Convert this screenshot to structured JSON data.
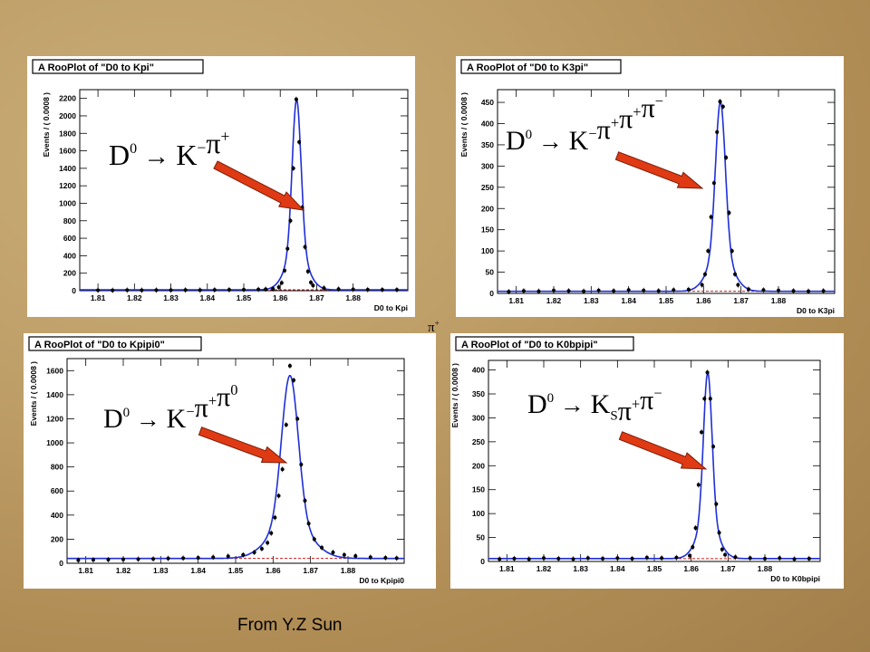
{
  "credit": "From Y.Z Sun",
  "stray_label": {
    "base": "π",
    "sup": "+"
  },
  "colors": {
    "fit": "#1f2fd8",
    "background": "#d01818",
    "points": "#000000",
    "arrow": "#e03a14",
    "arrow_edge": "#7a1e08"
  },
  "chart_data": [
    {
      "type": "scatter",
      "title": "A RooPlot of \"D0 to Kpi\"",
      "xlabel": "D0 to Kpi",
      "ylabel": "Events / ( 0.0008 )",
      "xlim": [
        1.805,
        1.895
      ],
      "ylim": [
        0,
        2300
      ],
      "xticks": [
        "1.81",
        "1.82",
        "1.83",
        "1.84",
        "1.85",
        "1.86",
        "1.87",
        "1.88"
      ],
      "yticks": [
        0,
        200,
        400,
        600,
        800,
        1000,
        1200,
        1400,
        1600,
        1800,
        2000,
        2200
      ],
      "peak": {
        "mean": 1.8645,
        "sigma": 0.0012,
        "height": 2190
      },
      "baseline": 10,
      "formula": {
        "base": "D",
        "sup0": "0",
        "arrow": "→",
        "parts": [
          [
            "K",
            "−",
            ""
          ],
          [
            "π",
            "+",
            ""
          ]
        ]
      },
      "points": [
        [
          1.81,
          5
        ],
        [
          1.814,
          4
        ],
        [
          1.818,
          6
        ],
        [
          1.822,
          5
        ],
        [
          1.826,
          7
        ],
        [
          1.83,
          6
        ],
        [
          1.834,
          8
        ],
        [
          1.838,
          7
        ],
        [
          1.842,
          9
        ],
        [
          1.846,
          10
        ],
        [
          1.85,
          12
        ],
        [
          1.854,
          14
        ],
        [
          1.856,
          17
        ],
        [
          1.858,
          22
        ],
        [
          1.8596,
          40
        ],
        [
          1.8604,
          90
        ],
        [
          1.8612,
          230
        ],
        [
          1.862,
          480
        ],
        [
          1.8628,
          800
        ],
        [
          1.8636,
          1400
        ],
        [
          1.8644,
          2190
        ],
        [
          1.8652,
          1700
        ],
        [
          1.866,
          950
        ],
        [
          1.8668,
          500
        ],
        [
          1.8676,
          220
        ],
        [
          1.8684,
          95
        ],
        [
          1.869,
          60
        ],
        [
          1.872,
          30
        ],
        [
          1.876,
          18
        ],
        [
          1.88,
          15
        ],
        [
          1.884,
          12
        ],
        [
          1.888,
          11
        ],
        [
          1.892,
          10
        ]
      ]
    },
    {
      "type": "scatter",
      "title": "A RooPlot of \"D0 to K3pi\"",
      "xlabel": "D0 to K3pi",
      "ylabel": "Events / ( 0.0008 )",
      "xlim": [
        1.805,
        1.895
      ],
      "ylim": [
        0,
        480
      ],
      "xticks": [
        "1.81",
        "1.82",
        "1.83",
        "1.84",
        "1.85",
        "1.86",
        "1.87",
        "1.88"
      ],
      "yticks": [
        0,
        50,
        100,
        150,
        200,
        250,
        300,
        350,
        400,
        450
      ],
      "peak": {
        "mean": 1.8645,
        "sigma": 0.0013,
        "height": 452
      },
      "baseline": 5,
      "formula": {
        "base": "D",
        "sup0": "0",
        "arrow": "→",
        "parts": [
          [
            "K",
            "−",
            ""
          ],
          [
            "π",
            "+",
            ""
          ],
          [
            "π",
            "+",
            ""
          ],
          [
            "π",
            "−",
            ""
          ]
        ]
      },
      "points": [
        [
          1.808,
          4
        ],
        [
          1.812,
          6
        ],
        [
          1.816,
          5
        ],
        [
          1.82,
          7
        ],
        [
          1.824,
          6
        ],
        [
          1.828,
          5
        ],
        [
          1.832,
          7
        ],
        [
          1.836,
          6
        ],
        [
          1.84,
          8
        ],
        [
          1.844,
          7
        ],
        [
          1.848,
          6
        ],
        [
          1.852,
          8
        ],
        [
          1.856,
          9
        ],
        [
          1.8596,
          20
        ],
        [
          1.8604,
          45
        ],
        [
          1.8612,
          100
        ],
        [
          1.862,
          180
        ],
        [
          1.8628,
          260
        ],
        [
          1.8636,
          380
        ],
        [
          1.8644,
          452
        ],
        [
          1.8652,
          440
        ],
        [
          1.866,
          320
        ],
        [
          1.8668,
          190
        ],
        [
          1.8676,
          100
        ],
        [
          1.8684,
          45
        ],
        [
          1.8692,
          20
        ],
        [
          1.872,
          10
        ],
        [
          1.876,
          8
        ],
        [
          1.88,
          7
        ],
        [
          1.884,
          6
        ],
        [
          1.888,
          5
        ],
        [
          1.892,
          6
        ]
      ]
    },
    {
      "type": "scatter",
      "title": "A RooPlot of \"D0 to Kpipi0\"",
      "xlabel": "D0 to Kpipi0",
      "ylabel": "Events / ( 0.0008 )",
      "xlim": [
        1.805,
        1.895
      ],
      "ylim": [
        0,
        1700
      ],
      "xticks": [
        "1.81",
        "1.82",
        "1.83",
        "1.84",
        "1.85",
        "1.86",
        "1.87",
        "1.88"
      ],
      "yticks": [
        0,
        200,
        400,
        600,
        800,
        1000,
        1200,
        1400,
        1600
      ],
      "peak": {
        "mean": 1.8645,
        "sigma": 0.0022,
        "height": 1560
      },
      "baseline": 40,
      "formula": {
        "base": "D",
        "sup0": "0",
        "arrow": "→",
        "parts": [
          [
            "K",
            "−",
            ""
          ],
          [
            "π",
            "+",
            ""
          ],
          [
            "π",
            "0",
            ""
          ]
        ]
      },
      "points": [
        [
          1.808,
          25
        ],
        [
          1.812,
          28
        ],
        [
          1.816,
          30
        ],
        [
          1.82,
          32
        ],
        [
          1.824,
          34
        ],
        [
          1.828,
          36
        ],
        [
          1.832,
          40
        ],
        [
          1.836,
          42
        ],
        [
          1.84,
          45
        ],
        [
          1.844,
          50
        ],
        [
          1.848,
          58
        ],
        [
          1.852,
          70
        ],
        [
          1.855,
          90
        ],
        [
          1.857,
          120
        ],
        [
          1.8585,
          170
        ],
        [
          1.8595,
          250
        ],
        [
          1.8605,
          380
        ],
        [
          1.8615,
          560
        ],
        [
          1.8625,
          780
        ],
        [
          1.8635,
          1150
        ],
        [
          1.8645,
          1640
        ],
        [
          1.8655,
          1520
        ],
        [
          1.8665,
          1200
        ],
        [
          1.8675,
          820
        ],
        [
          1.8685,
          520
        ],
        [
          1.8695,
          330
        ],
        [
          1.871,
          200
        ],
        [
          1.873,
          130
        ],
        [
          1.876,
          90
        ],
        [
          1.879,
          70
        ],
        [
          1.882,
          60
        ],
        [
          1.886,
          50
        ],
        [
          1.89,
          45
        ],
        [
          1.893,
          42
        ]
      ]
    },
    {
      "type": "scatter",
      "title": "A RooPlot of \"D0 to K0bpipi\"",
      "xlabel": "D0 to K0bpipi",
      "ylabel": "Events / ( 0.0008 )",
      "xlim": [
        1.805,
        1.895
      ],
      "ylim": [
        0,
        420
      ],
      "xticks": [
        "1.81",
        "1.82",
        "1.83",
        "1.84",
        "1.85",
        "1.86",
        "1.87",
        "1.88"
      ],
      "yticks": [
        0,
        50,
        100,
        150,
        200,
        250,
        300,
        350,
        400
      ],
      "peak": {
        "mean": 1.8645,
        "sigma": 0.00115,
        "height": 395
      },
      "baseline": 6,
      "formula": {
        "base": "D",
        "sup0": "0",
        "arrow": "→",
        "parts": [
          [
            "K",
            "",
            "S"
          ],
          [
            "π",
            "+",
            ""
          ],
          [
            "π",
            "−",
            ""
          ]
        ]
      },
      "points": [
        [
          1.808,
          5
        ],
        [
          1.812,
          6
        ],
        [
          1.816,
          5
        ],
        [
          1.82,
          7
        ],
        [
          1.824,
          6
        ],
        [
          1.828,
          5
        ],
        [
          1.832,
          7
        ],
        [
          1.836,
          6
        ],
        [
          1.84,
          7
        ],
        [
          1.844,
          6
        ],
        [
          1.848,
          8
        ],
        [
          1.852,
          7
        ],
        [
          1.856,
          8
        ],
        [
          1.8596,
          12
        ],
        [
          1.8604,
          30
        ],
        [
          1.8612,
          70
        ],
        [
          1.862,
          160
        ],
        [
          1.8628,
          270
        ],
        [
          1.8636,
          340
        ],
        [
          1.8644,
          395
        ],
        [
          1.8652,
          340
        ],
        [
          1.866,
          240
        ],
        [
          1.8668,
          120
        ],
        [
          1.8676,
          60
        ],
        [
          1.8684,
          25
        ],
        [
          1.8692,
          14
        ],
        [
          1.872,
          9
        ],
        [
          1.876,
          7
        ],
        [
          1.88,
          6
        ],
        [
          1.884,
          7
        ],
        [
          1.888,
          5
        ],
        [
          1.892,
          6
        ]
      ]
    }
  ]
}
